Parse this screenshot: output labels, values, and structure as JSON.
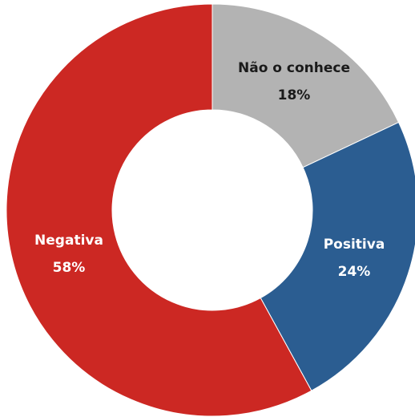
{
  "chart_data": {
    "type": "donut",
    "categories": [
      "Não o conhece",
      "Positiva",
      "Negativa"
    ],
    "values": [
      18,
      24,
      58
    ],
    "value_labels": [
      "18%",
      "24%",
      "58%"
    ],
    "colors": [
      "#b3b3b3",
      "#2b5d91",
      "#cc2823"
    ]
  }
}
